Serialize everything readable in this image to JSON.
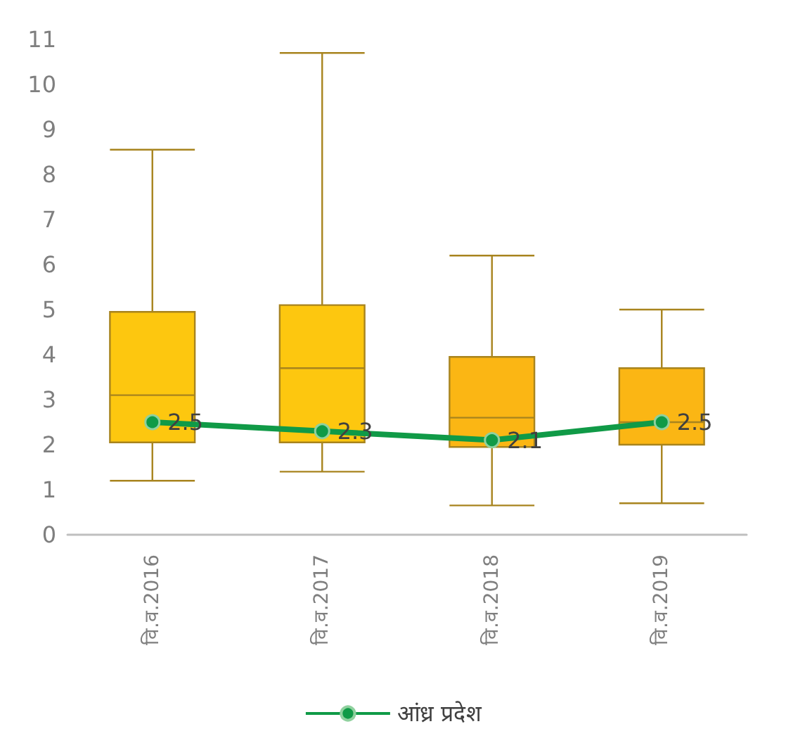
{
  "chart_data": {
    "type": "box",
    "categories": [
      "वि.व.2016",
      "वि.व.2017",
      "वि.व.2018",
      "वि.व.2019"
    ],
    "boxes": [
      {
        "low": 1.2,
        "q1": 2.05,
        "median": 3.1,
        "q3": 4.95,
        "high": 8.55
      },
      {
        "low": 1.4,
        "q1": 2.05,
        "median": 3.7,
        "q3": 5.1,
        "high": 10.7
      },
      {
        "low": 0.65,
        "q1": 1.95,
        "median": 2.6,
        "q3": 3.95,
        "high": 6.2
      },
      {
        "low": 0.7,
        "q1": 2.0,
        "median": 2.5,
        "q3": 3.7,
        "high": 5.0
      }
    ],
    "colors": [
      "#fdc70f",
      "#fdc70f",
      "#fbb614",
      "#fbb614"
    ],
    "series": [
      {
        "type": "line",
        "name": "आंध्र प्रदेश",
        "color": "#109a47",
        "values": [
          2.5,
          2.3,
          2.1,
          2.5
        ],
        "value_labels": [
          "2.5",
          "2.3",
          "2.1",
          "2.5"
        ]
      }
    ],
    "ylim": [
      0,
      11
    ],
    "yticks": [
      0,
      1,
      2,
      3,
      4,
      5,
      6,
      7,
      8,
      9,
      10,
      11
    ],
    "grid": false,
    "legend": "bottom",
    "marker": "circle"
  }
}
